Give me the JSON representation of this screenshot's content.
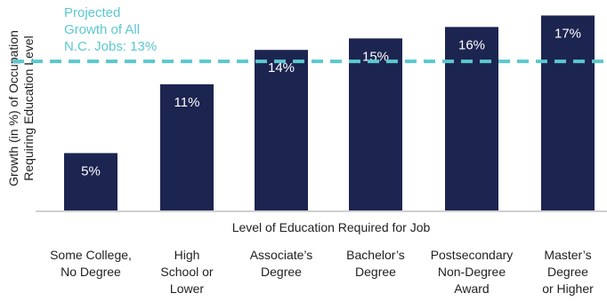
{
  "chart_data": {
    "type": "bar",
    "categories": [
      [
        "Some College,",
        "No Degree"
      ],
      [
        "High",
        "School or",
        "Lower"
      ],
      [
        "Associate’s",
        "Degree"
      ],
      [
        "Bachelor’s",
        "Degree"
      ],
      [
        "Postsecondary",
        "Non-Degree",
        "Award"
      ],
      [
        "Master’s",
        "Degree",
        "or Higher"
      ]
    ],
    "values": [
      5,
      11,
      14,
      15,
      16,
      17
    ],
    "value_labels": [
      "5%",
      "11%",
      "14%",
      "15%",
      "16%",
      "17%"
    ],
    "xlabel": "Level of Education Required for Job",
    "ylabel": [
      "Growth (in %) of Occupation",
      "Requiring Education Level"
    ],
    "ylim": [
      0,
      17.5
    ],
    "grid": false,
    "reference_line": {
      "value": 13,
      "style": "dashed",
      "label": [
        "Projected",
        "Growth of All",
        "N.C. Jobs: 13%"
      ]
    },
    "colors": {
      "bar": "#1c2450",
      "reference": "#5bc8cf",
      "axis": "#cfcfcf",
      "text": "#1f1f1f",
      "value_text": "#ffffff"
    }
  }
}
